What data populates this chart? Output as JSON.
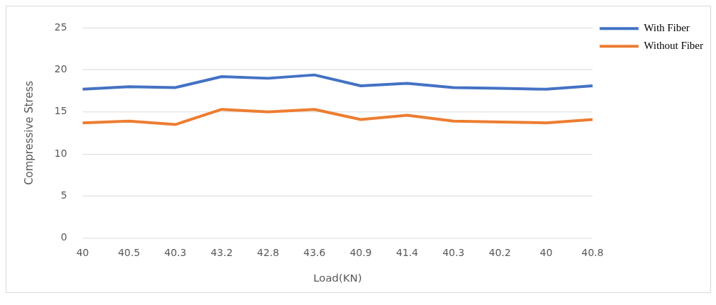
{
  "chart_data": {
    "type": "line",
    "xlabel": "Load(KN)",
    "ylabel": "Compressive Stress",
    "categories": [
      "40",
      "40.5",
      "40.3",
      "43.2",
      "42.8",
      "43.6",
      "40.9",
      "41.4",
      "40.3",
      "40.2",
      "40",
      "40.8"
    ],
    "series": [
      {
        "name": "With Fiber",
        "color": "#4472c4",
        "values": [
          17.7,
          18.0,
          17.9,
          19.2,
          19.0,
          19.4,
          18.1,
          18.4,
          17.9,
          17.8,
          17.7,
          18.1
        ]
      },
      {
        "name": "Without Fiber",
        "color": "#ed7d31",
        "values": [
          13.7,
          13.9,
          13.5,
          15.3,
          15.0,
          15.3,
          14.1,
          14.6,
          13.9,
          13.8,
          13.7,
          14.1
        ]
      }
    ],
    "ylim": [
      0,
      25
    ],
    "yticks": [
      0,
      5,
      10,
      15,
      20,
      25
    ],
    "grid": "y",
    "legend": "top right",
    "marker": "none",
    "line_style": "solid"
  }
}
